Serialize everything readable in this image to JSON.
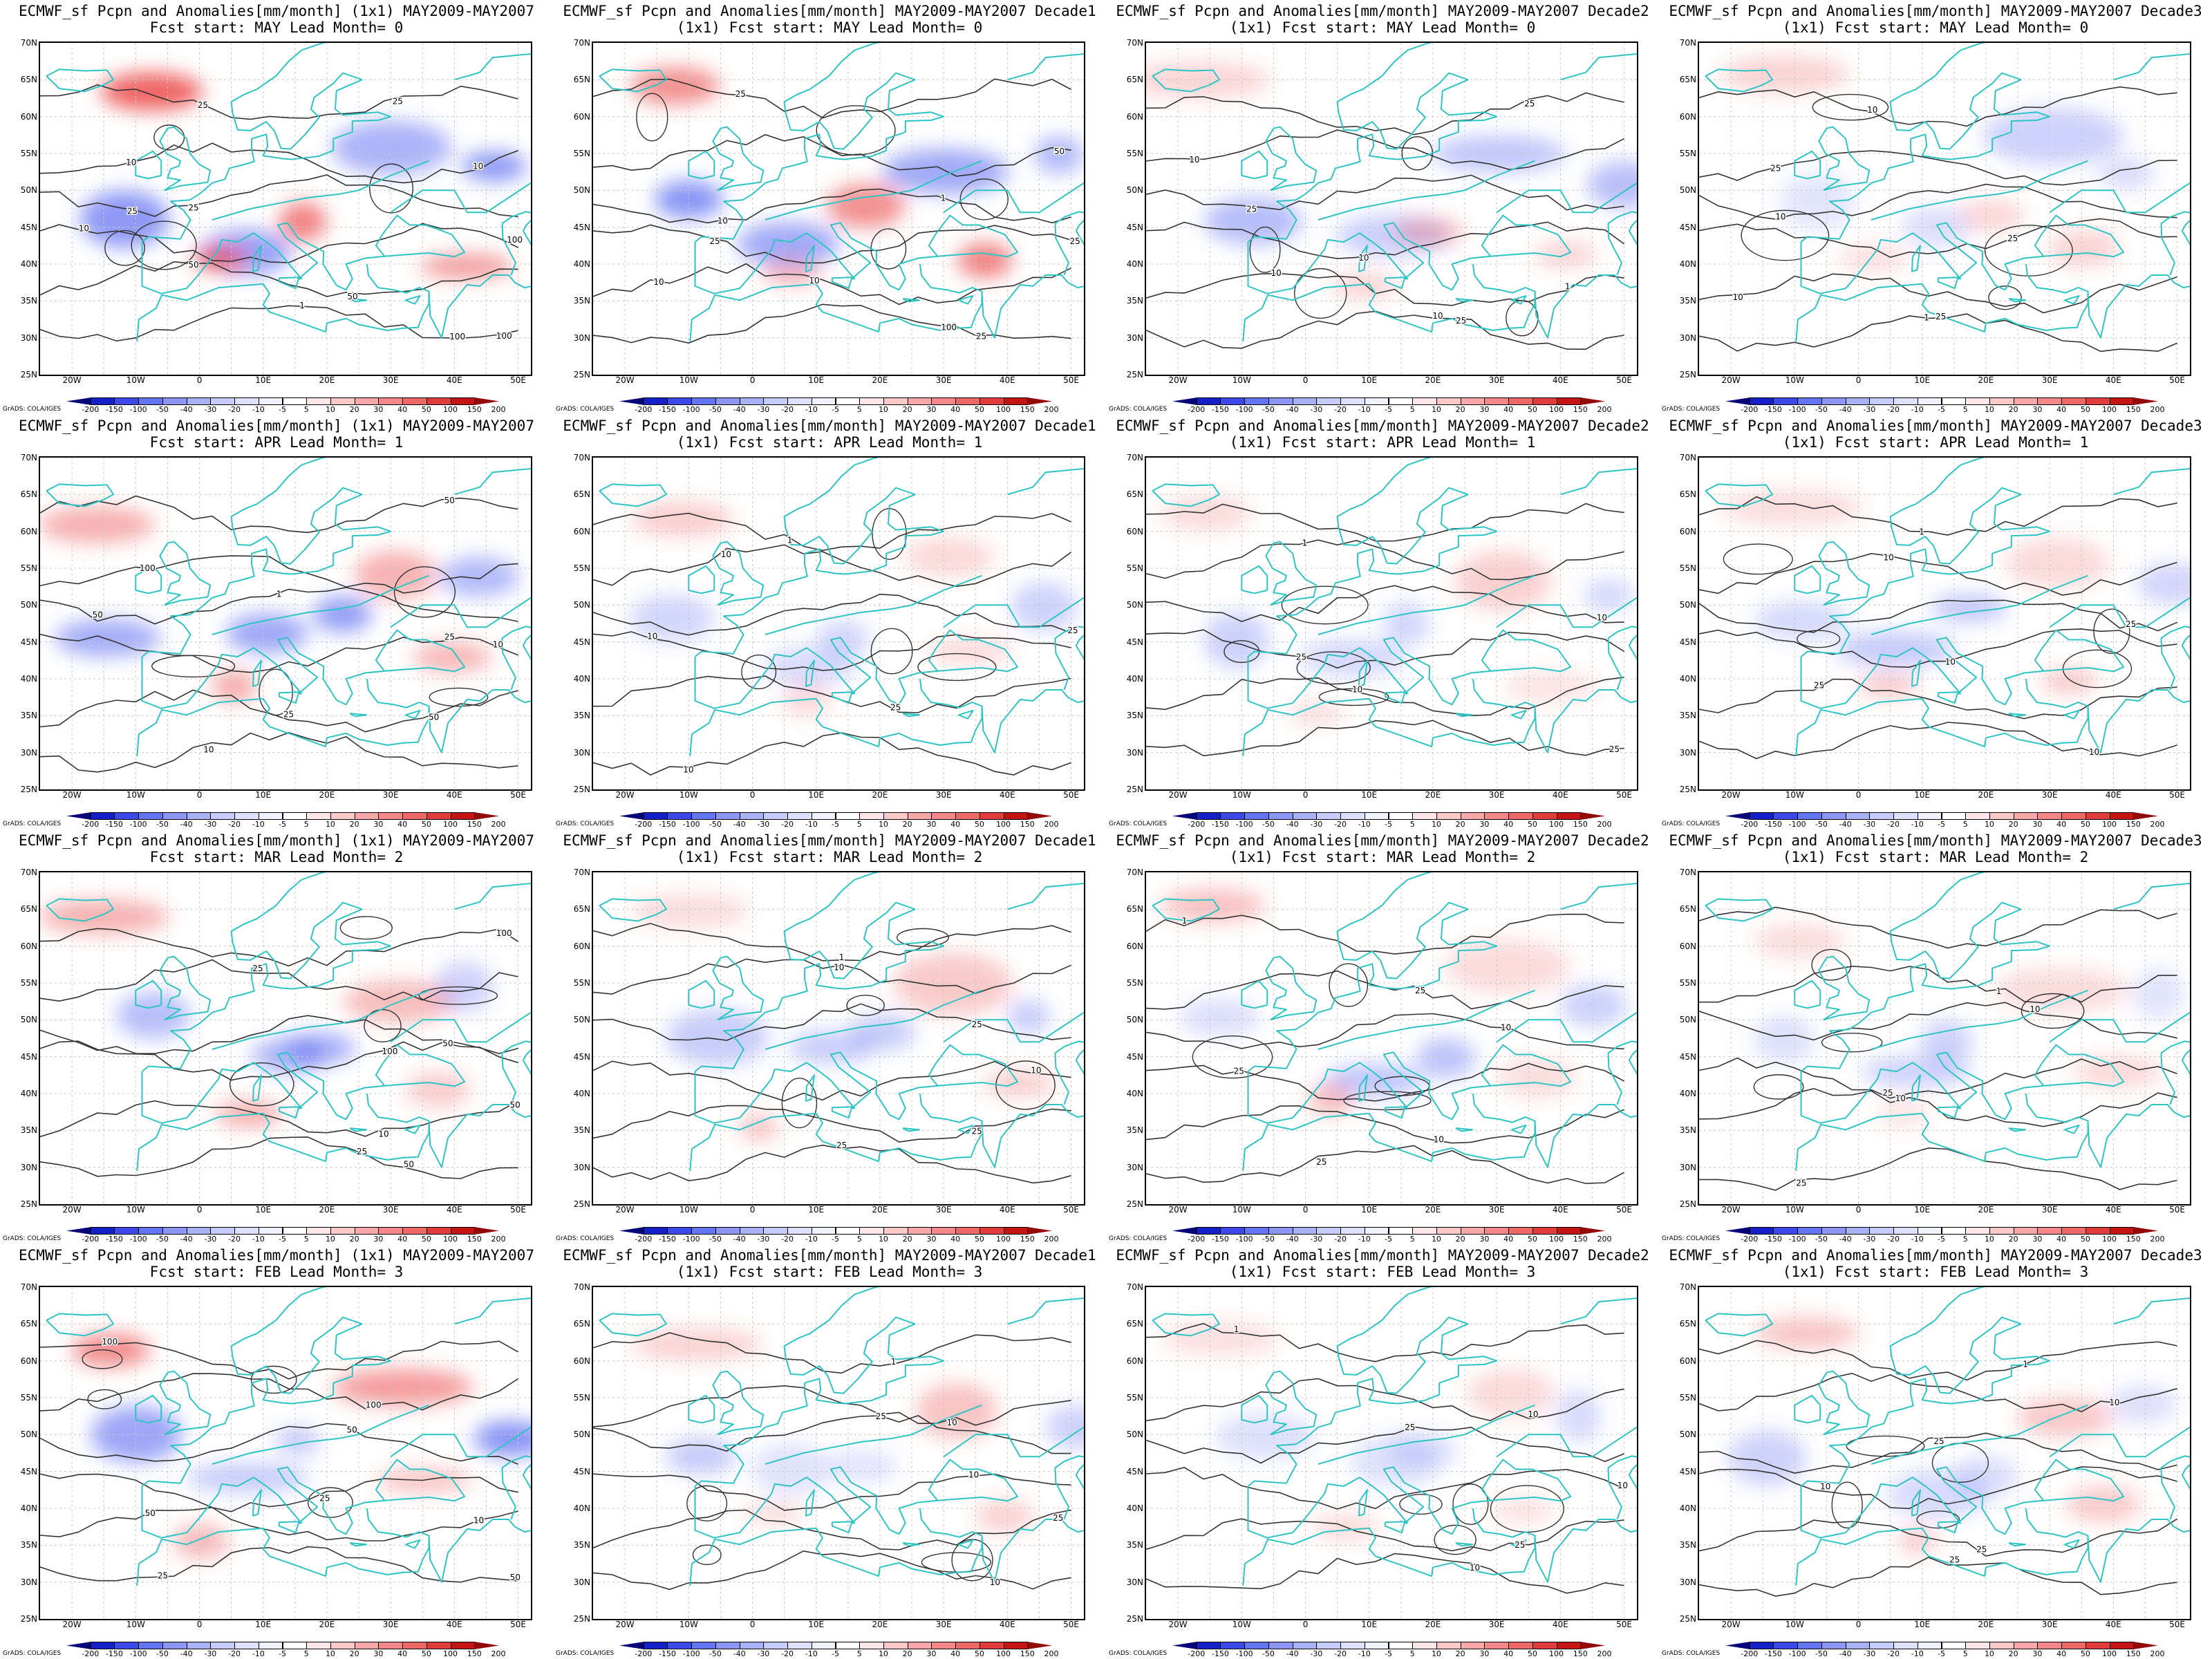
{
  "colors": {
    "coast": "#2ec4c4",
    "contour": "#333333",
    "grid": "#c8c8c8",
    "wet": "#4a5cf0",
    "dry": "#ec4b4b"
  },
  "colorbar": {
    "levels": [
      "-200",
      "-150",
      "-100",
      "-50",
      "-40",
      "-30",
      "-20",
      "-10",
      "-5",
      "5",
      "10",
      "20",
      "30",
      "40",
      "50",
      "100",
      "150",
      "200"
    ],
    "colors": [
      "#08047a",
      "#1522c8",
      "#3b49e8",
      "#6375f0",
      "#8c97f3",
      "#aab2f6",
      "#c6ccf9",
      "#dde1fb",
      "#f0f1fd",
      "#ffffff",
      "#fde6e6",
      "#fbc8c8",
      "#f8a8a8",
      "#f48888",
      "#ee6868",
      "#e03c3c",
      "#c41414",
      "#930a0a"
    ]
  },
  "axes": {
    "lat_labels": [
      "70N",
      "65N",
      "60N",
      "55N",
      "50N",
      "45N",
      "40N",
      "35N",
      "30N",
      "25N"
    ],
    "lon_labels": [
      "20W",
      "10W",
      "0",
      "10E",
      "20E",
      "30E",
      "40E",
      "50E"
    ]
  },
  "credit": "GrADS: COLA/IGES",
  "panels": [
    {
      "title1": "ECMWF_sf Pcpn and Anomalies[mm/month] (1x1) MAY2009-MAY2007",
      "title2": "Fcst start: MAY  Lead Month= 0",
      "intensity": 1.0,
      "contour_labels": [
        "100",
        "50",
        "100",
        "25",
        "10",
        "25",
        "100",
        "50",
        "10",
        "25",
        "10",
        "25",
        "1"
      ]
    },
    {
      "title1": "ECMWF_sf Pcpn and Anomalies[mm/month] MAY2009-MAY2007 Decade1",
      "title2": "(1x1) Fcst start: MAY  Lead Month= 0",
      "intensity": 0.85,
      "contour_labels": [
        "25",
        "10",
        "25",
        "10",
        "50",
        "25",
        "100",
        "10",
        "25",
        "1"
      ]
    },
    {
      "title1": "ECMWF_sf Pcpn and Anomalies[mm/month] MAY2009-MAY2007 Decade2",
      "title2": "(1x1) Fcst start: MAY  Lead Month= 0",
      "intensity": 0.45,
      "contour_labels": [
        "25",
        "10",
        "10",
        "25",
        "10",
        "25",
        "10",
        "1"
      ]
    },
    {
      "title1": "ECMWF_sf Pcpn and Anomalies[mm/month] MAY2009-MAY2007 Decade3",
      "title2": "(1x1) Fcst start: MAY  Lead Month= 0",
      "intensity": 0.3,
      "contour_labels": [
        "25",
        "10",
        "25",
        "10",
        "25",
        "10",
        "1"
      ]
    },
    {
      "title1": "ECMWF_sf Pcpn and Anomalies[mm/month] (1x1) MAY2009-MAY2007",
      "title2": "Fcst start: APR  Lead Month= 1",
      "intensity": 0.75,
      "contour_labels": [
        "50",
        "50",
        "25",
        "50",
        "100",
        "50",
        "10",
        "25",
        "10",
        "1"
      ]
    },
    {
      "title1": "ECMWF_sf Pcpn and Anomalies[mm/month] MAY2009-MAY2007 Decade1",
      "title2": "(1x1) Fcst start: APR  Lead Month= 1",
      "intensity": 0.3,
      "contour_labels": [
        "10",
        "25",
        "10",
        "25",
        "10",
        "1"
      ]
    },
    {
      "title1": "ECMWF_sf Pcpn and Anomalies[mm/month] MAY2009-MAY2007 Decade2",
      "title2": "(1x1) Fcst start: APR  Lead Month= 1",
      "intensity": 0.3,
      "contour_labels": [
        "25",
        "10",
        "25",
        "10",
        "1"
      ]
    },
    {
      "title1": "ECMWF_sf Pcpn and Anomalies[mm/month] MAY2009-MAY2007 Decade3",
      "title2": "(1x1) Fcst start: APR  Lead Month= 1",
      "intensity": 0.4,
      "contour_labels": [
        "10",
        "25",
        "10",
        "25",
        "10",
        "1"
      ]
    },
    {
      "title1": "ECMWF_sf Pcpn and Anomalies[mm/month] (1x1) MAY2009-MAY2007",
      "title2": "Fcst start: MAR  Lead Month= 2",
      "intensity": 0.55,
      "contour_labels": [
        "25",
        "50",
        "100",
        "50",
        "25",
        "100",
        "50",
        "10"
      ]
    },
    {
      "title1": "ECMWF_sf Pcpn and Anomalies[mm/month] MAY2009-MAY2007 Decade1",
      "title2": "(1x1) Fcst start: MAR  Lead Month= 2",
      "intensity": 0.35,
      "contour_labels": [
        "25",
        "25",
        "10",
        "25",
        "10",
        "1"
      ]
    },
    {
      "title1": "ECMWF_sf Pcpn and Anomalies[mm/month] MAY2009-MAY2007 Decade2",
      "title2": "(1x1) Fcst start: MAR  Lead Month= 2",
      "intensity": 0.4,
      "contour_labels": [
        "25",
        "10",
        "25",
        "10",
        "25",
        "1"
      ]
    },
    {
      "title1": "ECMWF_sf Pcpn and Anomalies[mm/month] MAY2009-MAY2007 Decade3",
      "title2": "(1x1) Fcst start: MAR  Lead Month= 2",
      "intensity": 0.3,
      "contour_labels": [
        "25",
        "10",
        "25",
        "10",
        "1"
      ]
    },
    {
      "title1": "ECMWF_sf Pcpn and Anomalies[mm/month] (1x1) MAY2009-MAY2007",
      "title2": "Fcst start: FEB  Lead Month= 3",
      "intensity": 0.7,
      "contour_labels": [
        "50",
        "50",
        "25",
        "50",
        "100",
        "100",
        "25",
        "10"
      ]
    },
    {
      "title1": "ECMWF_sf Pcpn and Anomalies[mm/month] MAY2009-MAY2007 Decade1",
      "title2": "(1x1) Fcst start: FEB  Lead Month= 3",
      "intensity": 0.35,
      "contour_labels": [
        "10",
        "25",
        "10",
        "25",
        "10",
        "1"
      ]
    },
    {
      "title1": "ECMWF_sf Pcpn and Anomalies[mm/month] MAY2009-MAY2007 Decade2",
      "title2": "(1x1) Fcst start: FEB  Lead Month= 3",
      "intensity": 0.35,
      "contour_labels": [
        "10",
        "25",
        "10",
        "25",
        "10",
        "1"
      ]
    },
    {
      "title1": "ECMWF_sf Pcpn and Anomalies[mm/month] MAY2009-MAY2007 Decade3",
      "title2": "(1x1) Fcst start: FEB  Lead Month= 3",
      "intensity": 0.4,
      "contour_labels": [
        "25",
        "25",
        "10",
        "25",
        "10",
        "1"
      ]
    }
  ]
}
